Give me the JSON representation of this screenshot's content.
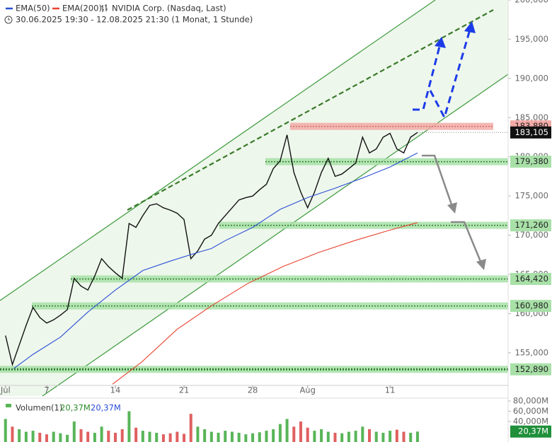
{
  "chart_data": {
    "type": "line",
    "title": "NVIDIA Corp. (Nasdaq, Last)",
    "subtitle": "30.06.2025 19:30 - 12.08.2025 21:30  (1 Monat, 1 Stunde)",
    "xlim": [
      -0.4,
      36.6
    ],
    "xticks": [
      {
        "value": 0,
        "label": "Jul"
      },
      {
        "value": 3,
        "label": "7"
      },
      {
        "value": 8,
        "label": "14"
      },
      {
        "value": 13,
        "label": "21"
      },
      {
        "value": 18,
        "label": "28"
      },
      {
        "value": 22,
        "label": "Aug"
      },
      {
        "value": 28,
        "label": "11"
      }
    ],
    "ylim": [
      150840,
      200000
    ],
    "yticks": [
      {
        "value": 155000,
        "label": "155,000"
      },
      {
        "value": 160000,
        "label": "160,000"
      },
      {
        "value": 165000,
        "label": "165,000"
      },
      {
        "value": 170000,
        "label": "170,000"
      },
      {
        "value": 175000,
        "label": "175,000"
      },
      {
        "value": 180000,
        "label": "180,000"
      },
      {
        "value": 185000,
        "label": "185,000"
      },
      {
        "value": 190000,
        "label": "190,000"
      },
      {
        "value": 195000,
        "label": "195,000"
      },
      {
        "value": 200000,
        "label": "200,000"
      }
    ],
    "series": [
      {
        "name": "NVIDIA Corp. (Nasdaq, Last)",
        "color": "#111111",
        "x": [
          0,
          0.5,
          1,
          1.5,
          2,
          2.5,
          3,
          3.5,
          4,
          4.5,
          5,
          5.5,
          6,
          6.5,
          7,
          7.5,
          8,
          8.5,
          9,
          9.5,
          10,
          10.5,
          11,
          11.5,
          12,
          12.5,
          13,
          13.5,
          14,
          14.5,
          15,
          15.5,
          16,
          16.5,
          17,
          17.5,
          18,
          18.5,
          19,
          19.5,
          20,
          20.5,
          21,
          21.5,
          22,
          22.5,
          23,
          23.5,
          24,
          24.5,
          25,
          25.5,
          26,
          26.5,
          27,
          27.5,
          28,
          28.5,
          29,
          29.5,
          30
        ],
        "values": [
          157200,
          153500,
          156000,
          158500,
          160800,
          159500,
          158800,
          159200,
          159800,
          160500,
          164500,
          163500,
          163000,
          164800,
          167000,
          166000,
          165200,
          164500,
          171500,
          171000,
          172500,
          173800,
          174000,
          173500,
          173200,
          172800,
          172000,
          167000,
          168000,
          169500,
          170000,
          171500,
          172500,
          173500,
          174500,
          174800,
          175000,
          175800,
          176500,
          178500,
          179500,
          182800,
          178000,
          175500,
          173500,
          175500,
          178000,
          179800,
          177500,
          177800,
          178500,
          179200,
          182500,
          180500,
          181000,
          182500,
          183000,
          181000,
          180500,
          182500,
          183105
        ]
      },
      {
        "name": "EMA(50)",
        "color": "#2a4fd6",
        "x": [
          0.6,
          2,
          4,
          6,
          8,
          10,
          12,
          14,
          15,
          16,
          18,
          20,
          22,
          24,
          26,
          28,
          30
        ],
        "values": [
          153000,
          154800,
          157000,
          160200,
          163000,
          165500,
          166700,
          167800,
          168300,
          169300,
          171000,
          173300,
          174800,
          176000,
          177300,
          178700,
          180500
        ]
      },
      {
        "name": "EMA(200)",
        "color": "#e8422f",
        "x": [
          7.8,
          9.9,
          12.5,
          15,
          17.6,
          20.2,
          22.8,
          25.4,
          27.9,
          30
        ],
        "values": [
          151000,
          153800,
          158000,
          161000,
          163800,
          166000,
          167800,
          169300,
          170600,
          171600
        ]
      }
    ],
    "levels": [
      {
        "value": 183880,
        "label": "183,880",
        "color": "#f2aaa6"
      },
      {
        "value": 179380,
        "label": "179,380",
        "color": "#a8e0a8"
      },
      {
        "value": 171260,
        "label": "171,260",
        "color": "#a8e0a8"
      },
      {
        "value": 164420,
        "label": "164,420",
        "color": "#a8e0a8"
      },
      {
        "value": 160980,
        "label": "160,980",
        "color": "#a8e0a8"
      },
      {
        "value": 152890,
        "label": "152,890",
        "color": "#a8e0a8"
      }
    ],
    "last": {
      "value": 183105,
      "label": "183,105"
    },
    "volume": {
      "title": "Volumen(1)",
      "up_color": "#58b558",
      "down_color": "#e06060",
      "ylim": [
        0,
        82.8
      ],
      "yticks": [
        {
          "value": 40,
          "label": "40,000M"
        },
        {
          "value": 60,
          "label": "60,000M"
        },
        {
          "value": 80,
          "label": "80,000M"
        }
      ],
      "values": [
        45,
        30,
        25,
        20,
        22,
        18,
        15,
        20,
        17,
        14,
        40,
        25,
        20,
        18,
        30,
        22,
        18,
        25,
        60,
        28,
        22,
        20,
        18,
        15,
        17,
        20,
        16,
        55,
        30,
        25,
        20,
        18,
        22,
        20,
        18,
        15,
        17,
        19,
        22,
        25,
        35,
        45,
        30,
        40,
        28,
        22,
        25,
        20,
        18,
        17,
        20,
        22,
        30,
        25,
        20,
        18,
        22,
        24,
        20,
        18,
        20.37
      ],
      "last": {
        "value": 20.37,
        "label": "20,37M"
      }
    }
  }
}
